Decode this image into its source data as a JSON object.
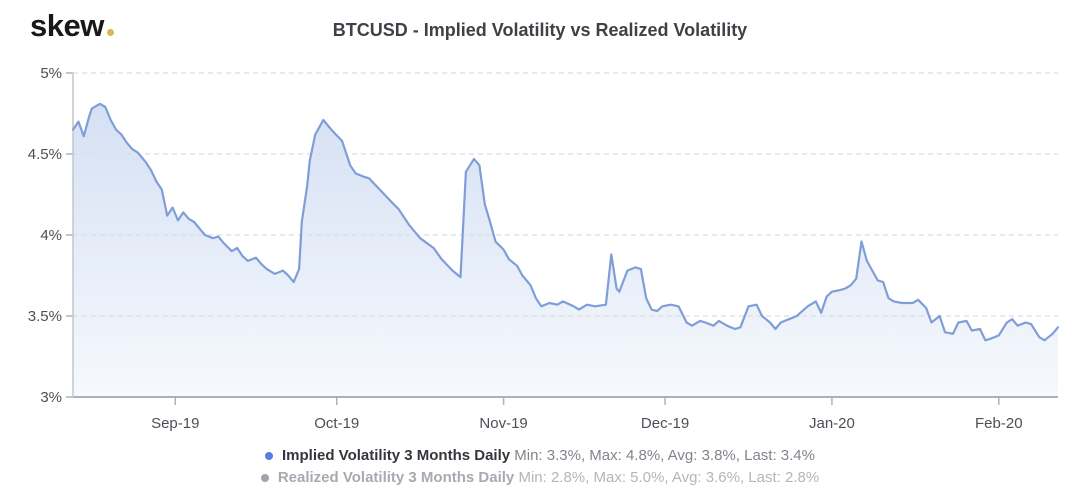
{
  "header": {
    "logo_text": "skew",
    "logo_dot_color": "#d9b64e",
    "title": "BTCUSD - Implied Volatility vs Realized Volatility"
  },
  "legend": {
    "items": [
      {
        "name": "Implied Volatility 3 Months Daily",
        "stats": "Min: 3.3%, Max: 4.8%, Avg: 3.8%, Last: 3.4%",
        "bullet_color": "#5b7ce2",
        "muted": false
      },
      {
        "name": "Realized Volatility 3 Months Daily",
        "stats": "Min: 2.8%, Max: 5.0%, Avg: 3.6%, Last: 2.8%",
        "bullet_color": "#a0a5ad",
        "muted": true
      }
    ]
  },
  "colors": {
    "grid": "#dcdee2",
    "axis": "#aeb2b8",
    "spine": "#c3c6cb",
    "tick_label": "#4b5056",
    "title": "#3e4247"
  },
  "chart_data": {
    "type": "area",
    "title": "BTCUSD - Implied Volatility vs Realized Volatility",
    "xlabel": "",
    "ylabel": "",
    "y_unit": "%",
    "grid": true,
    "legend_position": "bottom",
    "y_domain": [
      3,
      5
    ],
    "y_ticks": [
      {
        "value": 5,
        "label": "5%"
      },
      {
        "value": 4.5,
        "label": "4.5%"
      },
      {
        "value": 4,
        "label": "4%"
      },
      {
        "value": 3.5,
        "label": "3.5%"
      },
      {
        "value": 3,
        "label": "3%"
      }
    ],
    "x_unit": "days-from-left-edge (mid-Aug-2019 to mid-Feb-2020)",
    "x_domain": [
      0,
      183
    ],
    "x_ticks": [
      {
        "pos": 19,
        "label": "Sep-19"
      },
      {
        "pos": 49,
        "label": "Oct-19"
      },
      {
        "pos": 80,
        "label": "Nov-19"
      },
      {
        "pos": 110,
        "label": "Dec-19"
      },
      {
        "pos": 141,
        "label": "Jan-20"
      },
      {
        "pos": 172,
        "label": "Feb-20"
      }
    ],
    "series": [
      {
        "name": "Implied Volatility 3 Months Daily",
        "line_color": "#7f9ed8",
        "fill_top": "#d2def3",
        "fill_bottom": "#f6f9fd",
        "min": 3.3,
        "max": 4.8,
        "avg": 3.8,
        "last": 3.4,
        "points": [
          [
            0,
            4.65
          ],
          [
            1,
            4.7
          ],
          [
            2,
            4.61
          ],
          [
            3,
            4.73
          ],
          [
            3.5,
            4.78
          ],
          [
            5,
            4.81
          ],
          [
            6,
            4.79
          ],
          [
            7,
            4.71
          ],
          [
            8,
            4.65
          ],
          [
            9,
            4.62
          ],
          [
            10,
            4.57
          ],
          [
            11,
            4.53
          ],
          [
            12,
            4.51
          ],
          [
            12.5,
            4.49
          ],
          [
            13.5,
            4.45
          ],
          [
            14.5,
            4.4
          ],
          [
            15.5,
            4.33
          ],
          [
            16.5,
            4.28
          ],
          [
            17.5,
            4.12
          ],
          [
            18.5,
            4.17
          ],
          [
            19.5,
            4.09
          ],
          [
            20.5,
            4.14
          ],
          [
            21.5,
            4.1
          ],
          [
            22.5,
            4.08
          ],
          [
            23.5,
            4.04
          ],
          [
            24.5,
            4.0
          ],
          [
            26,
            3.98
          ],
          [
            27,
            3.99
          ],
          [
            28,
            3.95
          ],
          [
            29.5,
            3.9
          ],
          [
            30.5,
            3.92
          ],
          [
            31.5,
            3.87
          ],
          [
            32.5,
            3.84
          ],
          [
            34,
            3.86
          ],
          [
            35,
            3.82
          ],
          [
            36,
            3.79
          ],
          [
            37.5,
            3.76
          ],
          [
            39,
            3.78
          ],
          [
            40,
            3.75
          ],
          [
            41,
            3.71
          ],
          [
            42,
            3.79
          ],
          [
            42.5,
            4.08
          ],
          [
            43.5,
            4.3
          ],
          [
            44,
            4.46
          ],
          [
            45,
            4.62
          ],
          [
            46.5,
            4.71
          ],
          [
            48,
            4.65
          ],
          [
            50,
            4.58
          ],
          [
            51.5,
            4.43
          ],
          [
            52.5,
            4.38
          ],
          [
            54,
            4.36
          ],
          [
            55,
            4.35
          ],
          [
            57,
            4.28
          ],
          [
            59,
            4.21
          ],
          [
            60.5,
            4.16
          ],
          [
            62.5,
            4.06
          ],
          [
            64.5,
            3.98
          ],
          [
            67,
            3.92
          ],
          [
            68.5,
            3.85
          ],
          [
            70.5,
            3.78
          ],
          [
            72,
            3.74
          ],
          [
            73,
            4.39
          ],
          [
            74.5,
            4.47
          ],
          [
            75.5,
            4.43
          ],
          [
            76.5,
            4.19
          ],
          [
            77.5,
            4.08
          ],
          [
            78.5,
            3.96
          ],
          [
            80,
            3.91
          ],
          [
            81,
            3.85
          ],
          [
            82.5,
            3.81
          ],
          [
            83.5,
            3.75
          ],
          [
            85,
            3.69
          ],
          [
            86,
            3.61
          ],
          [
            87,
            3.56
          ],
          [
            88.5,
            3.58
          ],
          [
            90,
            3.57
          ],
          [
            91,
            3.59
          ],
          [
            93,
            3.56
          ],
          [
            94,
            3.54
          ],
          [
            95.5,
            3.57
          ],
          [
            97,
            3.56
          ],
          [
            99,
            3.57
          ],
          [
            100,
            3.88
          ],
          [
            101,
            3.67
          ],
          [
            101.5,
            3.65
          ],
          [
            103,
            3.78
          ],
          [
            104.5,
            3.8
          ],
          [
            105.5,
            3.79
          ],
          [
            106.5,
            3.61
          ],
          [
            107.5,
            3.54
          ],
          [
            108.5,
            3.53
          ],
          [
            109.5,
            3.56
          ],
          [
            111,
            3.57
          ],
          [
            112.5,
            3.56
          ],
          [
            114,
            3.46
          ],
          [
            115,
            3.44
          ],
          [
            116.5,
            3.47
          ],
          [
            117.5,
            3.46
          ],
          [
            119,
            3.44
          ],
          [
            120,
            3.47
          ],
          [
            121.5,
            3.44
          ],
          [
            123,
            3.42
          ],
          [
            124,
            3.43
          ],
          [
            125.5,
            3.56
          ],
          [
            127,
            3.57
          ],
          [
            128,
            3.5
          ],
          [
            129.5,
            3.46
          ],
          [
            130.5,
            3.42
          ],
          [
            131.5,
            3.46
          ],
          [
            133,
            3.48
          ],
          [
            134.5,
            3.5
          ],
          [
            135.5,
            3.53
          ],
          [
            136.5,
            3.56
          ],
          [
            138,
            3.59
          ],
          [
            139,
            3.52
          ],
          [
            140,
            3.62
          ],
          [
            141,
            3.65
          ],
          [
            142.5,
            3.66
          ],
          [
            143.5,
            3.67
          ],
          [
            144.5,
            3.69
          ],
          [
            145.5,
            3.73
          ],
          [
            146.5,
            3.96
          ],
          [
            147.5,
            3.84
          ],
          [
            148.5,
            3.78
          ],
          [
            149.5,
            3.72
          ],
          [
            150.5,
            3.71
          ],
          [
            151.5,
            3.61
          ],
          [
            152.5,
            3.59
          ],
          [
            154,
            3.58
          ],
          [
            156,
            3.58
          ],
          [
            157,
            3.6
          ],
          [
            158.5,
            3.55
          ],
          [
            159.5,
            3.46
          ],
          [
            161,
            3.5
          ],
          [
            162,
            3.4
          ],
          [
            163.5,
            3.39
          ],
          [
            164.5,
            3.46
          ],
          [
            166,
            3.47
          ],
          [
            167,
            3.41
          ],
          [
            168.5,
            3.42
          ],
          [
            169.5,
            3.35
          ],
          [
            170.5,
            3.36
          ],
          [
            172,
            3.38
          ],
          [
            173.5,
            3.46
          ],
          [
            174.5,
            3.48
          ],
          [
            175.5,
            3.44
          ],
          [
            177,
            3.46
          ],
          [
            178,
            3.45
          ],
          [
            179.5,
            3.37
          ],
          [
            180.5,
            3.35
          ],
          [
            182,
            3.39
          ],
          [
            183,
            3.43
          ]
        ]
      }
    ]
  }
}
